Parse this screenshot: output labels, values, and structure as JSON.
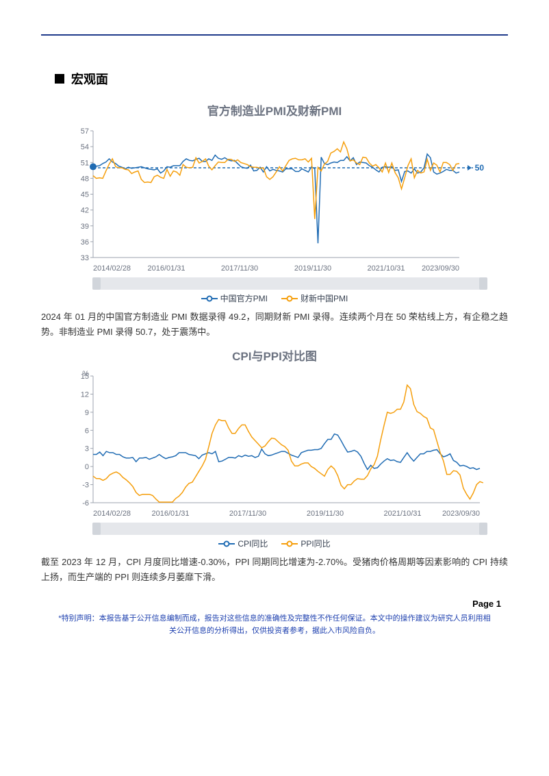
{
  "section_title": "宏观面",
  "chart1": {
    "type": "line",
    "title": "官方制造业PMI及财新PMI",
    "ylim": [
      33,
      57
    ],
    "yticks": [
      33,
      36,
      39,
      42,
      45,
      48,
      51,
      54,
      57
    ],
    "xlabels": [
      "2014/02/28",
      "2016/01/31",
      "2017/11/30",
      "2019/11/30",
      "2021/10/31",
      "2023/09/30"
    ],
    "reference_line": {
      "value": 50,
      "label": "50",
      "color": "#1f6bb3",
      "dash": "4,3"
    },
    "series": [
      {
        "name": "中国官方PMI",
        "color": "#1f6bb3",
        "marker_start": true,
        "data": [
          50.2,
          50.3,
          50.4,
          50.8,
          51.1,
          51.7,
          51.1,
          50.8,
          50.3,
          50.1,
          49.8,
          50.1,
          49.9,
          50.0,
          50.1,
          50.2,
          50.0,
          49.8,
          49.7,
          49.6,
          49.8,
          49.0,
          49.4,
          50.2,
          50.1,
          50.4,
          50.4,
          50.4,
          51.2,
          51.7,
          51.4,
          51.3,
          51.6,
          51.8,
          51.2,
          51.2,
          51.7,
          51.4,
          52.4,
          51.8,
          51.6,
          51.9,
          51.5,
          51.3,
          51.4,
          50.8,
          50.2,
          50.0,
          49.9,
          50.5,
          49.4,
          49.5,
          50.1,
          49.2,
          50.2,
          49.4,
          49.7,
          49.5,
          49.4,
          49.2,
          49.8,
          49.8,
          49.8,
          49.3,
          49.3,
          49.8,
          49.5,
          49.2,
          50.2,
          49.8,
          35.7,
          52.0,
          50.8,
          50.6,
          50.9,
          51.1,
          51.0,
          51.4,
          51.4,
          52.1,
          51.3,
          51.9,
          50.6,
          51.1,
          51.0,
          50.9,
          50.4,
          50.1,
          49.6,
          49.2,
          50.1,
          50.2,
          50.1,
          50.2,
          49.5,
          49.6,
          47.4,
          49.3,
          49.4,
          49.0,
          49.8,
          49.0,
          49.2,
          50.0,
          52.6,
          51.9,
          49.2,
          48.8,
          49.0,
          49.3,
          49.7,
          49.5,
          49.5,
          49.0,
          49.2
        ]
      },
      {
        "name": "财新中国PMI",
        "color": "#f59e0b",
        "marker_start": false,
        "data": [
          48.5,
          48.0,
          48.1,
          48.0,
          49.4,
          50.7,
          51.7,
          50.2,
          50.0,
          50.0,
          49.7,
          49.6,
          48.9,
          49.2,
          49.4,
          47.8,
          47.2,
          47.3,
          47.2,
          48.3,
          48.6,
          48.2,
          48.0,
          49.7,
          48.4,
          49.4,
          49.2,
          48.6,
          50.6,
          50.1,
          50.0,
          50.1,
          51.9,
          50.9,
          51.2,
          51.7,
          50.3,
          49.6,
          50.4,
          51.1,
          51.0,
          51.0,
          51.6,
          51.6,
          51.2,
          51.5,
          51.0,
          50.8,
          50.6,
          50.2,
          50.1,
          50.1,
          49.9,
          50.0,
          48.3,
          47.8,
          48.3,
          49.2,
          50.2,
          49.4,
          50.4,
          51.4,
          51.7,
          51.8,
          51.5,
          51.5,
          51.7,
          51.1,
          51.8,
          40.3,
          50.1,
          49.4,
          50.7,
          51.2,
          52.8,
          53.1,
          53.6,
          53.0,
          54.9,
          53.6,
          51.3,
          51.5,
          50.9,
          50.6,
          52.0,
          51.9,
          50.9,
          50.3,
          50.6,
          50.0,
          49.2,
          50.9,
          49.1,
          50.9,
          49.1,
          48.1,
          46.0,
          48.1,
          50.4,
          51.7,
          48.1,
          49.5,
          49.0,
          49.2,
          51.6,
          49.5,
          50.9,
          50.5,
          49.2,
          51.0,
          51.0,
          50.6,
          49.5,
          50.7,
          50.8
        ]
      }
    ],
    "legend": [
      {
        "label": "中国官方PMI",
        "color": "#1f6bb3"
      },
      {
        "label": "财新中国PMI",
        "color": "#f59e0b"
      }
    ],
    "background_color": "#ffffff",
    "grid_color": "#e5e7eb"
  },
  "text1": "2024 年 01 月的中国官方制造业 PMI 数据录得 49.2，同期财新 PMI 录得。连续两个月在 50 荣枯线上方，有企稳之趋势。非制造业 PMI 录得 50.7，处于震荡中。",
  "chart2": {
    "type": "line",
    "title": "CPI与PPI对比图",
    "y_unit": "%",
    "ylim": [
      -6,
      15
    ],
    "yticks": [
      -6,
      -3,
      0,
      3,
      6,
      9,
      12,
      15
    ],
    "xlabels": [
      "2014/02/28",
      "2016/01/31",
      "2017/11/30",
      "2019/11/30",
      "2021/10/31",
      "2023/09/30"
    ],
    "series": [
      {
        "name": "CPI同比",
        "color": "#1f6bb3",
        "data": [
          2.0,
          2.0,
          2.4,
          1.8,
          2.5,
          2.3,
          2.3,
          2.0,
          2.0,
          1.6,
          1.4,
          1.4,
          1.5,
          0.8,
          1.4,
          1.4,
          1.5,
          1.2,
          1.4,
          1.6,
          2.0,
          1.6,
          1.3,
          1.5,
          1.6,
          1.8,
          2.3,
          2.3,
          2.3,
          2.0,
          1.9,
          1.8,
          1.3,
          1.9,
          2.1,
          2.3,
          2.1,
          2.5,
          0.8,
          0.9,
          1.2,
          1.5,
          1.5,
          1.4,
          1.8,
          1.6,
          1.9,
          1.7,
          1.8,
          1.5,
          1.7,
          2.9,
          2.1,
          1.8,
          1.9,
          2.1,
          2.3,
          2.5,
          2.5,
          2.2,
          1.9,
          1.7,
          1.5,
          2.3,
          2.5,
          2.7,
          2.7,
          2.8,
          2.8,
          3.0,
          3.8,
          4.5,
          4.5,
          5.4,
          5.2,
          4.3,
          3.3,
          2.4,
          2.5,
          2.7,
          2.4,
          1.7,
          0.5,
          -0.5,
          0.2,
          -0.3,
          -0.2,
          0.4,
          0.9,
          1.3,
          1.0,
          1.1,
          0.8,
          0.7,
          1.5,
          2.3,
          1.5,
          0.9,
          1.5,
          2.1,
          2.1,
          2.5,
          2.5,
          2.7,
          2.8,
          2.1,
          1.6,
          1.8,
          2.1,
          1.0,
          0.7,
          0.1,
          0.2,
          0.0,
          -0.3,
          -0.2,
          -0.5,
          -0.3
        ]
      },
      {
        "name": "PPI同比",
        "color": "#f59e0b",
        "data": [
          -1.6,
          -2.0,
          -2.0,
          -2.3,
          -2.0,
          -1.4,
          -1.1,
          -0.9,
          -1.2,
          -1.8,
          -2.2,
          -2.7,
          -3.3,
          -4.3,
          -4.8,
          -4.6,
          -4.6,
          -4.6,
          -4.8,
          -5.4,
          -5.9,
          -5.9,
          -5.9,
          -5.9,
          -5.9,
          -5.3,
          -4.9,
          -4.3,
          -3.4,
          -2.8,
          -2.6,
          -1.7,
          -0.8,
          0.1,
          1.2,
          3.3,
          5.5,
          6.9,
          7.8,
          7.6,
          7.6,
          6.4,
          5.5,
          5.5,
          6.3,
          6.9,
          6.9,
          5.8,
          4.9,
          4.3,
          3.7,
          3.1,
          3.4,
          4.1,
          4.7,
          4.6,
          4.1,
          3.6,
          3.3,
          2.7,
          0.9,
          0.1,
          0.1,
          0.4,
          0.6,
          0.6,
          0.0,
          -0.3,
          -0.8,
          -1.2,
          -1.6,
          -0.5,
          0.1,
          -0.4,
          -1.5,
          -3.1,
          -3.7,
          -3.0,
          -3.0,
          -2.4,
          -2.0,
          -2.1,
          -2.1,
          -1.5,
          -0.4,
          0.3,
          1.7,
          4.4,
          6.8,
          9.0,
          8.8,
          9.0,
          9.5,
          9.5,
          10.7,
          13.5,
          12.9,
          10.3,
          9.1,
          8.8,
          8.3,
          8.0,
          6.4,
          6.1,
          4.2,
          2.3,
          0.9,
          -1.3,
          -1.3,
          -0.7,
          -0.8,
          -1.4,
          -3.6,
          -4.6,
          -5.4,
          -4.4,
          -3.0,
          -2.5,
          -2.7
        ]
      }
    ],
    "legend": [
      {
        "label": "CPI同比",
        "color": "#1f6bb3"
      },
      {
        "label": "PPI同比",
        "color": "#f59e0b"
      }
    ],
    "background_color": "#ffffff",
    "grid_color": "#e5e7eb"
  },
  "text2": "截至 2023 年 12 月，CPI 月度同比增速-0.30%，PPI 同期同比增速为-2.70%。受猪肉价格周期等因素影响的 CPI 持续上扬，而生产端的 PPI 则连续多月萎靡下滑。",
  "page_label": "Page 1",
  "disclaimer": "*特别声明：本报告基于公开信息编制而成，报告对这些信息的准确性及完整性不作任何保证。本文中的操作建议为研究人员利用相关公开信息的分析得出，仅供投资者参考，据此入市风险自负。"
}
